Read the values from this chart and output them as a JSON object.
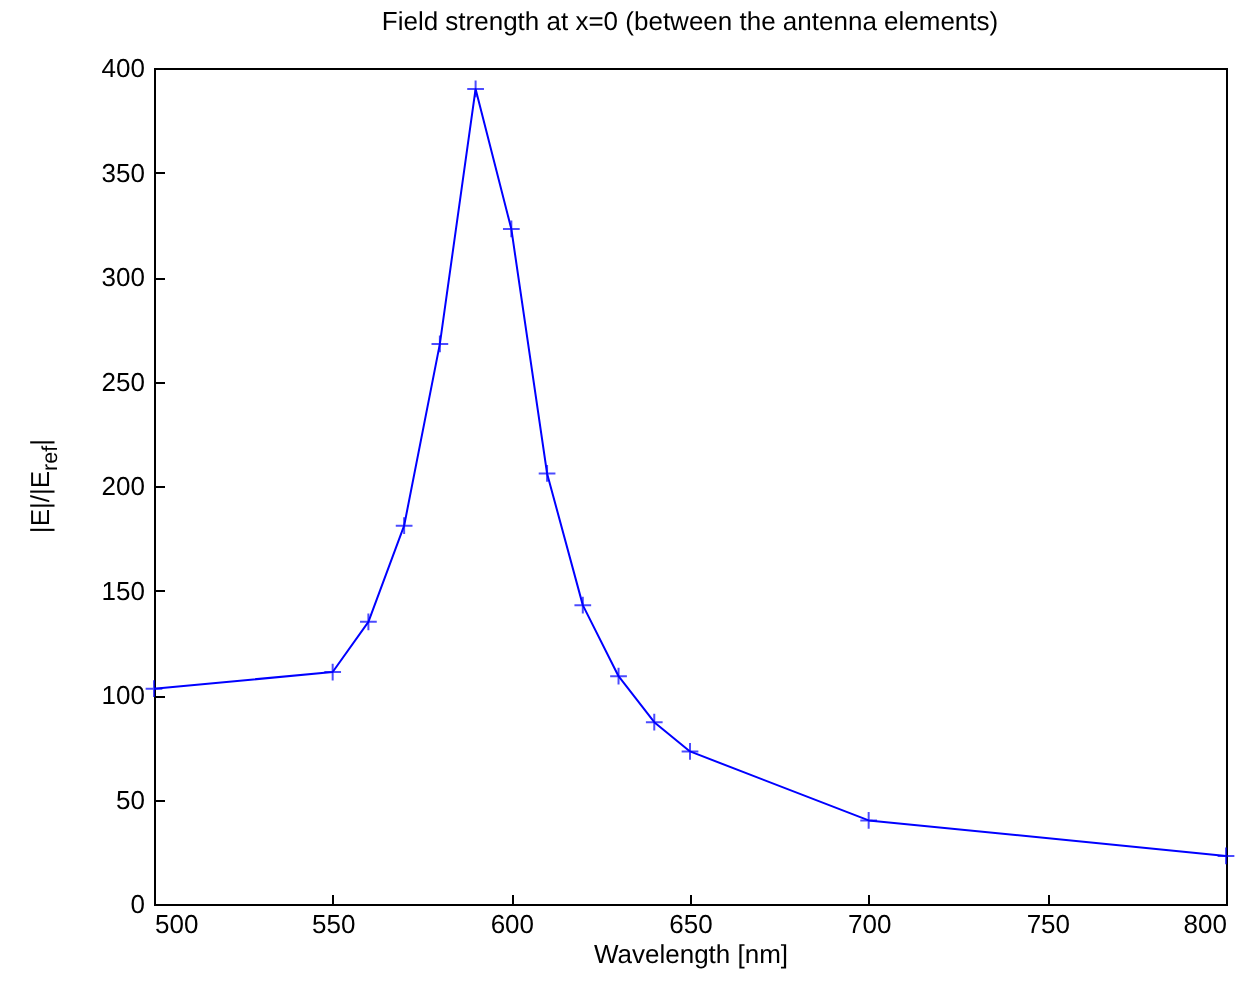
{
  "chart_data": {
    "type": "line",
    "title": "Field strength at x=0 (between the antenna elements)",
    "xlabel": "Wavelength [nm]",
    "ylabel": "|E|/|E$_{ref}$|",
    "x": [
      500,
      550,
      560,
      570,
      580,
      590,
      600,
      610,
      620,
      630,
      640,
      650,
      700,
      800
    ],
    "series": [
      {
        "color": "#0000ff",
        "values": [
          103,
          111,
          135,
          181,
          268,
          390,
          323,
          206,
          143,
          109,
          87,
          73,
          40,
          23
        ]
      }
    ],
    "xlim": [
      500,
      800
    ],
    "xticks": [
      500,
      550,
      600,
      650,
      700,
      750,
      800
    ],
    "ylim": [
      0,
      400
    ],
    "yticks": [
      0,
      50,
      100,
      150,
      200,
      250,
      300,
      350,
      400
    ],
    "grid": false,
    "marker": "cross",
    "line_style": "solid"
  }
}
